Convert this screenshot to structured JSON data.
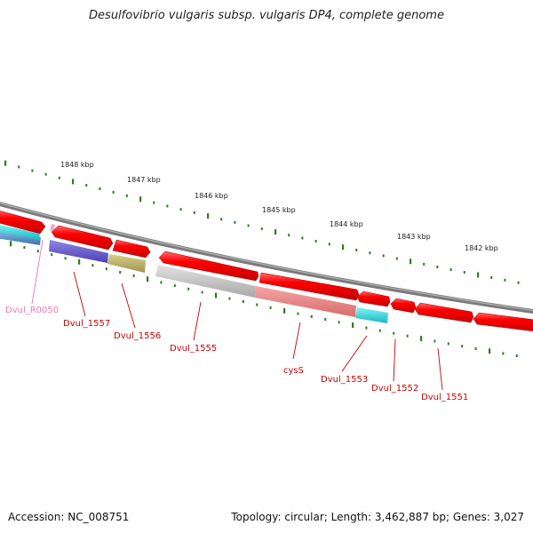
{
  "title": "Desulfovibrio vulgaris subsp. vulgaris DP4, complete genome",
  "kbp_labels": [
    "1848 kbp",
    "1847 kbp",
    "1846 kbp",
    "1845 kbp",
    "1844 kbp",
    "1843 kbp",
    "1842 kbp"
  ],
  "gene_labels": [
    "Dvul_R0050",
    "Dvul_1557",
    "Dvul_1556",
    "Dvul_1555",
    "cysS",
    "Dvul_1553",
    "Dvul_1552",
    "Dvul_1551"
  ],
  "footer": {
    "accession": "Accession: NC_008751",
    "summary": "Topology: circular; Length: 3,462,887 bp; Genes: 3,027"
  },
  "colors": {
    "backbone": "#7a7a7a",
    "forward_cds": "#e8000b",
    "tick": "#2e7d1f",
    "rna_label": "#f07ab0",
    "gene_label": "#cc0000"
  }
}
